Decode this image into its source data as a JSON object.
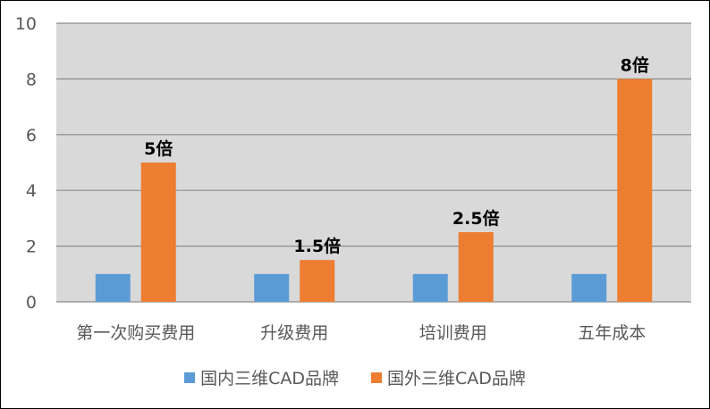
{
  "chart_data": {
    "type": "bar",
    "categories": [
      "第一次购买费用",
      "升级费用",
      "培训费用",
      "五年成本"
    ],
    "series": [
      {
        "name": "国内三维CAD品牌",
        "values": [
          1,
          1,
          1,
          1
        ],
        "color": "#5B9BD5"
      },
      {
        "name": "国外三维CAD品牌",
        "values": [
          5,
          1.5,
          2.5,
          8
        ],
        "color": "#ED7D31",
        "data_labels": [
          "5倍",
          "1.5倍",
          "2.5倍",
          "8倍"
        ]
      }
    ],
    "ylim": [
      0,
      10
    ],
    "yticks": [
      "0",
      "2",
      "4",
      "6",
      "8",
      "10"
    ],
    "grid": true,
    "plot_background": "#D9D9D9",
    "legend_position": "bottom"
  }
}
